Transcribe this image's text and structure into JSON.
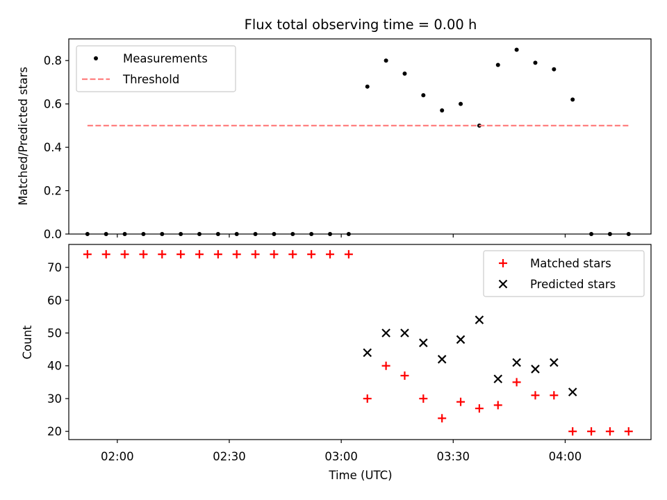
{
  "chart_data": [
    {
      "type": "scatter",
      "title": "Flux total observing time = 0.00 h",
      "ylabel": "Matched/Predicted stars",
      "xlabel": "",
      "x_unit": "Time (UTC)",
      "xlim": [
        "01:47",
        "04:23"
      ],
      "ylim": [
        0,
        0.9
      ],
      "yticks": [
        0.0,
        0.2,
        0.4,
        0.6,
        0.8
      ],
      "ytick_labels": [
        "0.0",
        "0.2",
        "0.4",
        "0.6",
        "0.8"
      ],
      "xticks": [
        "02:00",
        "02:30",
        "03:00",
        "03:30",
        "04:00"
      ],
      "show_xtick_labels": false,
      "grid": false,
      "legend_placement": "upper-left",
      "series": [
        {
          "name": "Measurements",
          "kind": "points",
          "color": "#000000",
          "x": [
            "01:52",
            "01:57",
            "02:02",
            "02:07",
            "02:12",
            "02:17",
            "02:22",
            "02:27",
            "02:32",
            "02:37",
            "02:42",
            "02:47",
            "02:52",
            "02:57",
            "03:02",
            "03:07",
            "03:12",
            "03:17",
            "03:22",
            "03:27",
            "03:32",
            "03:37",
            "03:42",
            "03:47",
            "03:52",
            "03:57",
            "04:02",
            "04:07",
            "04:12",
            "04:17"
          ],
          "y": [
            0,
            0,
            0,
            0,
            0,
            0,
            0,
            0,
            0,
            0,
            0,
            0,
            0,
            0,
            0,
            0.68,
            0.8,
            0.74,
            0.64,
            0.57,
            0.6,
            0.5,
            0.78,
            0.85,
            0.79,
            0.76,
            0.62,
            0,
            0,
            0
          ]
        },
        {
          "name": "Threshold",
          "kind": "dashed-line",
          "color": "#ff7f7f",
          "x": [
            "01:52",
            "04:17"
          ],
          "y": [
            0.5,
            0.5
          ]
        }
      ]
    },
    {
      "type": "scatter",
      "title": "",
      "ylabel": "Count",
      "xlabel": "Time (UTC)",
      "xlim": [
        "01:47",
        "04:23"
      ],
      "ylim": [
        17.5,
        77
      ],
      "yticks": [
        20,
        30,
        40,
        50,
        60,
        70
      ],
      "ytick_labels": [
        "20",
        "30",
        "40",
        "50",
        "60",
        "70"
      ],
      "xticks": [
        "02:00",
        "02:30",
        "03:00",
        "03:30",
        "04:00"
      ],
      "xtick_labels": [
        "02:00",
        "02:30",
        "03:00",
        "03:30",
        "04:00"
      ],
      "show_xtick_labels": true,
      "grid": false,
      "legend_placement": "upper-right",
      "series": [
        {
          "name": "Matched stars",
          "kind": "plus",
          "color": "#ff0000",
          "x": [
            "01:52",
            "01:57",
            "02:02",
            "02:07",
            "02:12",
            "02:17",
            "02:22",
            "02:27",
            "02:32",
            "02:37",
            "02:42",
            "02:47",
            "02:52",
            "02:57",
            "03:02",
            "03:07",
            "03:12",
            "03:17",
            "03:22",
            "03:27",
            "03:32",
            "03:37",
            "03:42",
            "03:47",
            "03:52",
            "03:57",
            "04:02",
            "04:07",
            "04:12",
            "04:17"
          ],
          "y": [
            74,
            74,
            74,
            74,
            74,
            74,
            74,
            74,
            74,
            74,
            74,
            74,
            74,
            74,
            74,
            30,
            40,
            37,
            30,
            24,
            29,
            27,
            28,
            35,
            31,
            31,
            20,
            20,
            20,
            20
          ]
        },
        {
          "name": "Predicted stars",
          "kind": "cross",
          "color": "#000000",
          "x": [
            "03:07",
            "03:12",
            "03:17",
            "03:22",
            "03:27",
            "03:32",
            "03:37",
            "03:42",
            "03:47",
            "03:52",
            "03:57",
            "04:02"
          ],
          "y": [
            44,
            50,
            50,
            47,
            42,
            48,
            54,
            36,
            41,
            39,
            41,
            32
          ]
        }
      ]
    }
  ]
}
